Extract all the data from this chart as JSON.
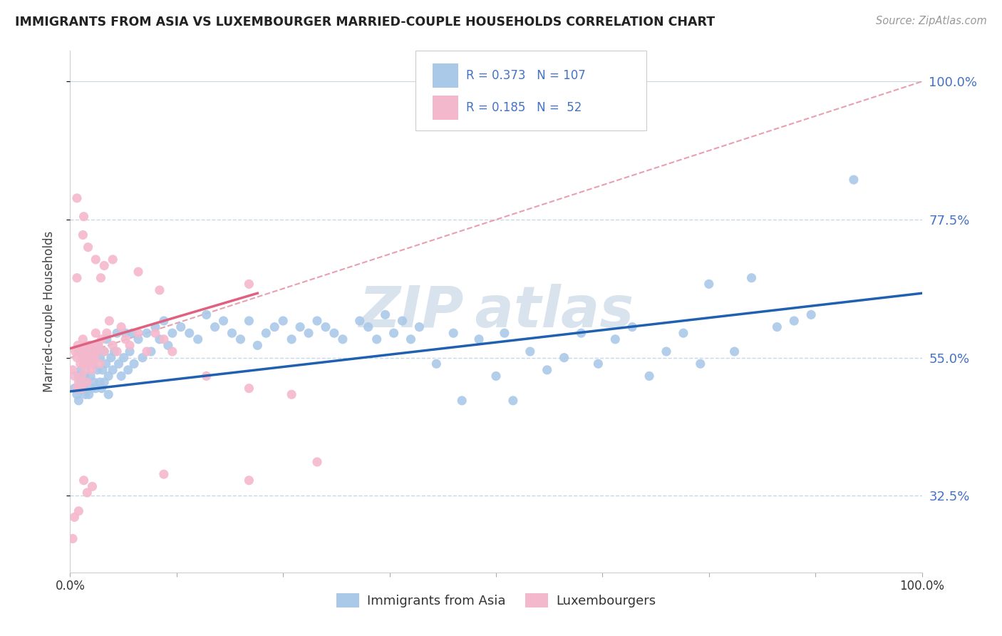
{
  "title": "IMMIGRANTS FROM ASIA VS LUXEMBOURGER MARRIED-COUPLE HOUSEHOLDS CORRELATION CHART",
  "source": "Source: ZipAtlas.com",
  "ylabel": "Married-couple Households",
  "xlim": [
    0.0,
    1.0
  ],
  "ylim": [
    0.2,
    1.05
  ],
  "xtick_positions": [
    0.0,
    0.125,
    0.25,
    0.375,
    0.5,
    0.625,
    0.75,
    0.875,
    1.0
  ],
  "xtick_labels": [
    "0.0%",
    "",
    "",
    "",
    "",
    "",
    "",
    "",
    "100.0%"
  ],
  "ytick_values": [
    0.325,
    0.55,
    0.775,
    1.0
  ],
  "ytick_labels": [
    "32.5%",
    "55.0%",
    "77.5%",
    "100.0%"
  ],
  "color_blue": "#aac9e8",
  "color_pink": "#f4b8cc",
  "color_line_blue": "#2060b0",
  "color_line_pink": "#e06080",
  "color_dashed": "#e8a0b0",
  "color_grid": "#c8d8e8",
  "watermark_color": "#c8d8e8",
  "blue_line_x0": 0.0,
  "blue_line_y0": 0.495,
  "blue_line_x1": 1.0,
  "blue_line_y1": 0.655,
  "pink_line_x0": 0.0,
  "pink_line_y0": 0.565,
  "pink_line_x1": 0.22,
  "pink_line_y1": 0.655,
  "dashed_line_x0": 0.0,
  "dashed_line_y0": 0.55,
  "dashed_line_x1": 1.0,
  "dashed_line_y1": 1.0,
  "blue_scatter_x": [
    0.005,
    0.008,
    0.01,
    0.01,
    0.012,
    0.013,
    0.015,
    0.015,
    0.017,
    0.018,
    0.02,
    0.02,
    0.022,
    0.022,
    0.024,
    0.025,
    0.025,
    0.027,
    0.028,
    0.03,
    0.03,
    0.032,
    0.033,
    0.035,
    0.035,
    0.037,
    0.038,
    0.04,
    0.04,
    0.042,
    0.043,
    0.045,
    0.045,
    0.048,
    0.05,
    0.052,
    0.055,
    0.057,
    0.06,
    0.063,
    0.065,
    0.068,
    0.07,
    0.073,
    0.075,
    0.08,
    0.085,
    0.09,
    0.095,
    0.1,
    0.105,
    0.11,
    0.115,
    0.12,
    0.13,
    0.14,
    0.15,
    0.16,
    0.17,
    0.18,
    0.19,
    0.2,
    0.21,
    0.22,
    0.23,
    0.24,
    0.25,
    0.26,
    0.27,
    0.28,
    0.29,
    0.3,
    0.31,
    0.32,
    0.34,
    0.35,
    0.36,
    0.37,
    0.38,
    0.39,
    0.4,
    0.41,
    0.43,
    0.45,
    0.46,
    0.48,
    0.5,
    0.51,
    0.52,
    0.54,
    0.56,
    0.58,
    0.6,
    0.62,
    0.64,
    0.66,
    0.68,
    0.7,
    0.72,
    0.74,
    0.75,
    0.78,
    0.8,
    0.83,
    0.85,
    0.87,
    0.92
  ],
  "blue_scatter_y": [
    0.5,
    0.49,
    0.52,
    0.48,
    0.51,
    0.53,
    0.5,
    0.55,
    0.52,
    0.49,
    0.56,
    0.51,
    0.54,
    0.49,
    0.52,
    0.56,
    0.5,
    0.54,
    0.51,
    0.56,
    0.5,
    0.53,
    0.57,
    0.51,
    0.55,
    0.5,
    0.53,
    0.56,
    0.51,
    0.54,
    0.58,
    0.52,
    0.49,
    0.55,
    0.53,
    0.56,
    0.59,
    0.54,
    0.52,
    0.55,
    0.59,
    0.53,
    0.56,
    0.59,
    0.54,
    0.58,
    0.55,
    0.59,
    0.56,
    0.6,
    0.58,
    0.61,
    0.57,
    0.59,
    0.6,
    0.59,
    0.58,
    0.62,
    0.6,
    0.61,
    0.59,
    0.58,
    0.61,
    0.57,
    0.59,
    0.6,
    0.61,
    0.58,
    0.6,
    0.59,
    0.61,
    0.6,
    0.59,
    0.58,
    0.61,
    0.6,
    0.58,
    0.62,
    0.59,
    0.61,
    0.58,
    0.6,
    0.54,
    0.59,
    0.48,
    0.58,
    0.52,
    0.59,
    0.48,
    0.56,
    0.53,
    0.55,
    0.59,
    0.54,
    0.58,
    0.6,
    0.52,
    0.56,
    0.59,
    0.54,
    0.67,
    0.56,
    0.68,
    0.6,
    0.61,
    0.62,
    0.84
  ],
  "pink_scatter_x": [
    0.003,
    0.005,
    0.006,
    0.008,
    0.008,
    0.009,
    0.01,
    0.01,
    0.012,
    0.013,
    0.013,
    0.014,
    0.015,
    0.015,
    0.016,
    0.017,
    0.018,
    0.019,
    0.02,
    0.021,
    0.022,
    0.023,
    0.024,
    0.025,
    0.026,
    0.027,
    0.028,
    0.029,
    0.03,
    0.031,
    0.033,
    0.035,
    0.037,
    0.04,
    0.043,
    0.046,
    0.05,
    0.055,
    0.06,
    0.065,
    0.07,
    0.08,
    0.09,
    0.1,
    0.11,
    0.12,
    0.16,
    0.21,
    0.26,
    0.29,
    0.005,
    0.008
  ],
  "pink_scatter_y": [
    0.53,
    0.52,
    0.56,
    0.5,
    0.55,
    0.57,
    0.51,
    0.56,
    0.54,
    0.52,
    0.56,
    0.5,
    0.55,
    0.58,
    0.54,
    0.56,
    0.53,
    0.57,
    0.51,
    0.55,
    0.54,
    0.57,
    0.55,
    0.53,
    0.56,
    0.54,
    0.57,
    0.55,
    0.59,
    0.56,
    0.57,
    0.54,
    0.58,
    0.56,
    0.59,
    0.61,
    0.57,
    0.56,
    0.6,
    0.58,
    0.57,
    0.59,
    0.56,
    0.59,
    0.58,
    0.56,
    0.52,
    0.5,
    0.49,
    0.38,
    0.29,
    0.68
  ],
  "pink_hi_x": [
    0.008,
    0.015,
    0.016,
    0.021,
    0.03,
    0.036,
    0.04,
    0.05,
    0.08,
    0.105,
    0.21
  ],
  "pink_hi_y": [
    0.81,
    0.75,
    0.78,
    0.73,
    0.71,
    0.68,
    0.7,
    0.71,
    0.69,
    0.66,
    0.67
  ],
  "pink_low_x": [
    0.003,
    0.01,
    0.016,
    0.02,
    0.026,
    0.11,
    0.21
  ],
  "pink_low_y": [
    0.255,
    0.3,
    0.35,
    0.33,
    0.34,
    0.36,
    0.35
  ]
}
